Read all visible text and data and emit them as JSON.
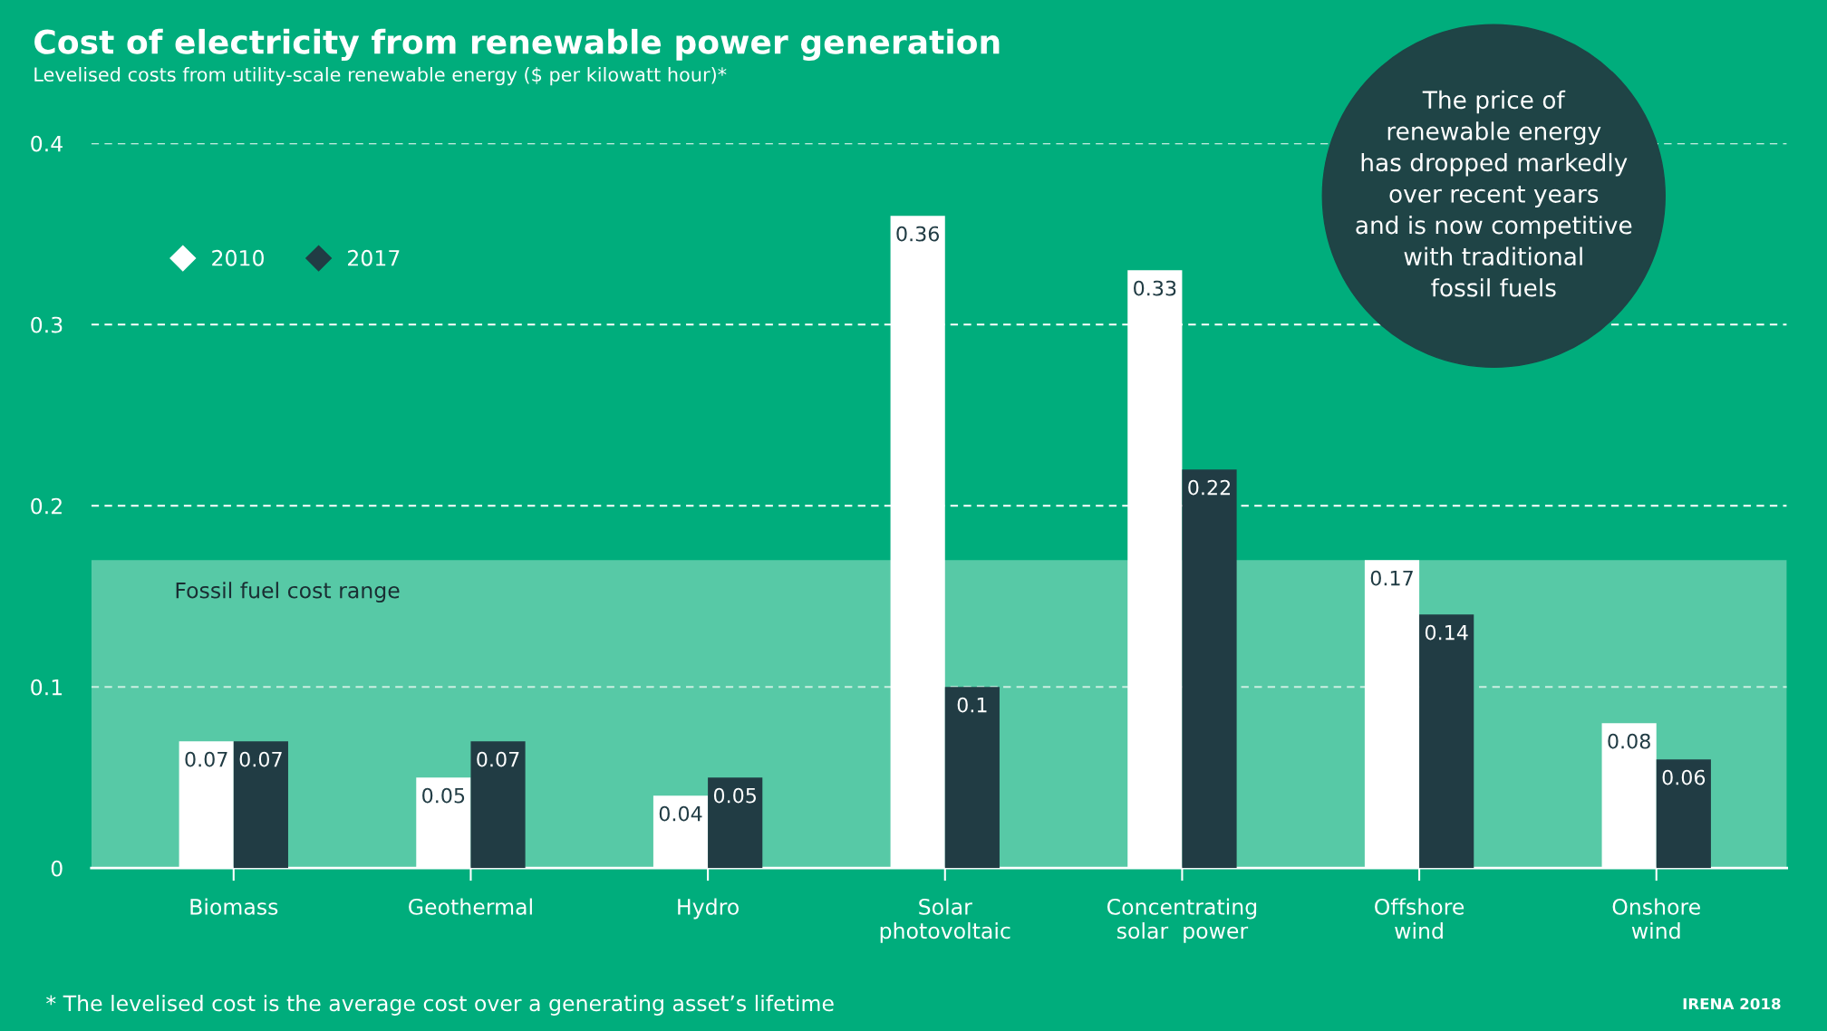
{
  "chart_data": {
    "type": "bar",
    "title": "Cost of electricity from renewable power generation",
    "subtitle": "Levelised costs from utility-scale renewable energy ($ per kilowatt hour)*",
    "categories": [
      "Biomass",
      "Geothermal",
      "Hydro",
      "Solar\nphotovoltaic",
      "Concentrating\nsolar  power",
      "Offshore\nwind",
      "Onshore\nwind"
    ],
    "series": [
      {
        "name": "2010",
        "color": "#ffffff",
        "values": [
          0.07,
          0.05,
          0.04,
          0.36,
          0.33,
          0.17,
          0.08
        ]
      },
      {
        "name": "2017",
        "color": "#213c44",
        "values": [
          0.07,
          0.07,
          0.05,
          0.1,
          0.22,
          0.14,
          0.06
        ]
      }
    ],
    "ylim": [
      0,
      0.4
    ],
    "yticks": [
      0,
      0.1,
      0.2,
      0.3,
      0.4
    ],
    "grid": "y",
    "legend": "top left",
    "data_labels": true,
    "marker": "diamond",
    "bands": [
      {
        "axis": "y",
        "from": 0,
        "to": 0.17,
        "label": "Fossil fuel cost range",
        "color": "#9fe0c8"
      }
    ],
    "annotations": [
      "The price of\nrenewable energy\nhas dropped markedly\nover recent years\nand is now competitive\nwith traditional\nfossil fuels",
      "* The levelised cost is the average cost over a generating asset’s lifetime",
      "IRENA 2018"
    ]
  }
}
